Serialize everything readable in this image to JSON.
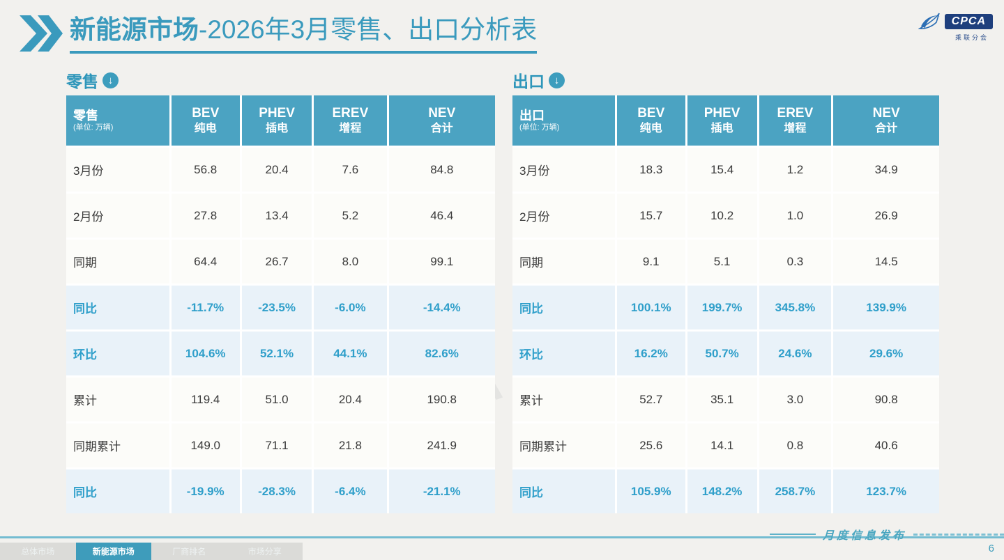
{
  "header": {
    "title_primary": "新能源市场",
    "title_secondary": "-2026年3月零售、出口分析表",
    "logo": {
      "name": "CPCA",
      "subtitle": "乘联分会"
    }
  },
  "panels": [
    {
      "id": "retail",
      "section_label": "零售",
      "corner_title": "零售",
      "corner_unit": "(单位: 万辆)",
      "columns": [
        {
          "en": "BEV",
          "zh": "纯电"
        },
        {
          "en": "PHEV",
          "zh": "插电"
        },
        {
          "en": "EREV",
          "zh": "增程"
        },
        {
          "en": "NEV",
          "zh": "合计"
        }
      ],
      "rows": [
        {
          "label": "3月份",
          "type": "data",
          "values": [
            "56.8",
            "20.4",
            "7.6",
            "84.8"
          ]
        },
        {
          "label": "2月份",
          "type": "data",
          "values": [
            "27.8",
            "13.4",
            "5.2",
            "46.4"
          ]
        },
        {
          "label": "同期",
          "type": "data",
          "values": [
            "64.4",
            "26.7",
            "8.0",
            "99.1"
          ]
        },
        {
          "label": "同比",
          "type": "pct",
          "values": [
            "-11.7%",
            "-23.5%",
            "-6.0%",
            "-14.4%"
          ]
        },
        {
          "label": "环比",
          "type": "pct",
          "values": [
            "104.6%",
            "52.1%",
            "44.1%",
            "82.6%"
          ]
        },
        {
          "label": "累计",
          "type": "data",
          "values": [
            "119.4",
            "51.0",
            "20.4",
            "190.8"
          ]
        },
        {
          "label": "同期累计",
          "type": "data",
          "values": [
            "149.0",
            "71.1",
            "21.8",
            "241.9"
          ]
        },
        {
          "label": "同比",
          "type": "pct",
          "values": [
            "-19.9%",
            "-28.3%",
            "-6.4%",
            "-21.1%"
          ]
        }
      ]
    },
    {
      "id": "export",
      "section_label": "出口",
      "corner_title": "出口",
      "corner_unit": "(单位: 万辆)",
      "columns": [
        {
          "en": "BEV",
          "zh": "纯电"
        },
        {
          "en": "PHEV",
          "zh": "插电"
        },
        {
          "en": "EREV",
          "zh": "增程"
        },
        {
          "en": "NEV",
          "zh": "合计"
        }
      ],
      "rows": [
        {
          "label": "3月份",
          "type": "data",
          "values": [
            "18.3",
            "15.4",
            "1.2",
            "34.9"
          ]
        },
        {
          "label": "2月份",
          "type": "data",
          "values": [
            "15.7",
            "10.2",
            "1.0",
            "26.9"
          ]
        },
        {
          "label": "同期",
          "type": "data",
          "values": [
            "9.1",
            "5.1",
            "0.3",
            "14.5"
          ]
        },
        {
          "label": "同比",
          "type": "pct",
          "values": [
            "100.1%",
            "199.7%",
            "345.8%",
            "139.9%"
          ]
        },
        {
          "label": "环比",
          "type": "pct",
          "values": [
            "16.2%",
            "50.7%",
            "24.6%",
            "29.6%"
          ]
        },
        {
          "label": "累计",
          "type": "data",
          "values": [
            "52.7",
            "35.1",
            "3.0",
            "90.8"
          ]
        },
        {
          "label": "同期累计",
          "type": "data",
          "values": [
            "25.6",
            "14.1",
            "0.8",
            "40.6"
          ]
        },
        {
          "label": "同比",
          "type": "pct",
          "values": [
            "105.9%",
            "148.2%",
            "258.7%",
            "123.7%"
          ]
        }
      ]
    }
  ],
  "footer": {
    "tabs": [
      {
        "label": "总体市场",
        "active": false
      },
      {
        "label": "新能源市场",
        "active": true
      },
      {
        "label": "厂商排名",
        "active": false
      },
      {
        "label": "市场分享",
        "active": false
      }
    ],
    "caption": "月度信息发布",
    "page_number": "6"
  },
  "icons": {
    "section_arrow": "↓"
  },
  "watermark_text": "CPCA",
  "colors": {
    "accent": "#3a9abd",
    "table_header_bg": "#4ba3c2",
    "pct_text": "#2f9fca",
    "pct_row_bg": "#e9f2f9",
    "logo_navy": "#1e3f7d"
  }
}
